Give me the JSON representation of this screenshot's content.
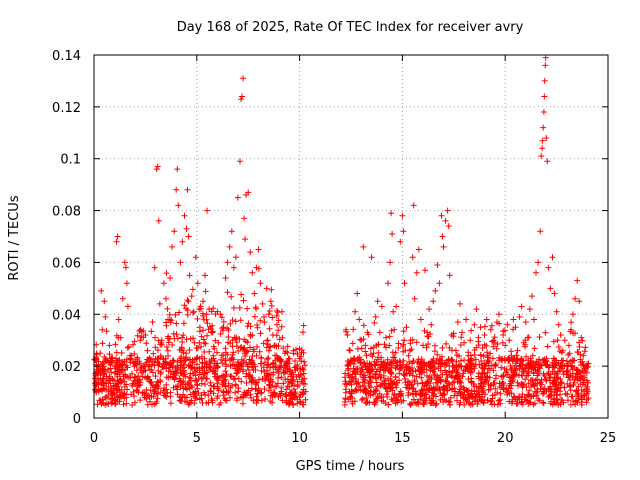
{
  "chart_data": {
    "type": "scatter",
    "title": "Day 168 of 2025, Rate Of TEC Index for receiver avry",
    "xlabel": "GPS time / hours",
    "ylabel": "ROTI / TECUs",
    "xlim": [
      0,
      25
    ],
    "ylim": [
      0,
      0.14
    ],
    "xticks": [
      0,
      5,
      10,
      15,
      20,
      25
    ],
    "xtick_labels": [
      "0",
      "5",
      "10",
      "15",
      "20",
      "25"
    ],
    "yticks": [
      0,
      0.02,
      0.04,
      0.06,
      0.08,
      0.1,
      0.12,
      0.14
    ],
    "ytick_labels": [
      "0",
      "0.02",
      "0.04",
      "0.06",
      "0.08",
      "0.1",
      "0.12",
      "0.14"
    ],
    "grid": true,
    "marker": "+",
    "marker_color": "#ff0000",
    "data_gap_hours": [
      10.3,
      12.2
    ],
    "series": [
      {
        "name": "ROTI",
        "points": [
          [
            0.05,
            0.011
          ],
          [
            0.15,
            0.018
          ],
          [
            0.3,
            0.025
          ],
          [
            0.35,
            0.049
          ],
          [
            0.4,
            0.034
          ],
          [
            0.5,
            0.045
          ],
          [
            0.55,
            0.039
          ],
          [
            0.6,
            0.022
          ],
          [
            0.7,
            0.012
          ],
          [
            0.75,
            0.028
          ],
          [
            0.9,
            0.015
          ],
          [
            1.0,
            0.009
          ],
          [
            1.1,
            0.068
          ],
          [
            1.15,
            0.07
          ],
          [
            1.2,
            0.038
          ],
          [
            1.3,
            0.031
          ],
          [
            1.4,
            0.046
          ],
          [
            1.5,
            0.06
          ],
          [
            1.55,
            0.058
          ],
          [
            1.6,
            0.052
          ],
          [
            1.65,
            0.043
          ],
          [
            1.75,
            0.024
          ],
          [
            1.85,
            0.017
          ],
          [
            2.0,
            0.013
          ],
          [
            2.1,
            0.021
          ],
          [
            2.25,
            0.03
          ],
          [
            2.4,
            0.018
          ],
          [
            2.5,
            0.032
          ],
          [
            2.6,
            0.026
          ],
          [
            2.75,
            0.014
          ],
          [
            2.85,
            0.037
          ],
          [
            2.95,
            0.058
          ],
          [
            3.05,
            0.096
          ],
          [
            3.1,
            0.097
          ],
          [
            3.15,
            0.076
          ],
          [
            3.2,
            0.044
          ],
          [
            3.3,
            0.03
          ],
          [
            3.4,
            0.052
          ],
          [
            3.5,
            0.046
          ],
          [
            3.6,
            0.038
          ],
          [
            3.7,
            0.054
          ],
          [
            3.8,
            0.066
          ],
          [
            3.9,
            0.072
          ],
          [
            4.0,
            0.088
          ],
          [
            4.05,
            0.096
          ],
          [
            4.1,
            0.082
          ],
          [
            4.2,
            0.06
          ],
          [
            4.3,
            0.068
          ],
          [
            4.4,
            0.078
          ],
          [
            4.5,
            0.073
          ],
          [
            4.55,
            0.088
          ],
          [
            4.6,
            0.07
          ],
          [
            4.65,
            0.055
          ],
          [
            4.75,
            0.047
          ],
          [
            4.85,
            0.041
          ],
          [
            4.95,
            0.062
          ],
          [
            5.05,
            0.052
          ],
          [
            5.15,
            0.035
          ],
          [
            5.3,
            0.045
          ],
          [
            5.4,
            0.055
          ],
          [
            5.5,
            0.08
          ],
          [
            5.6,
            0.042
          ],
          [
            5.7,
            0.033
          ],
          [
            5.8,
            0.024
          ],
          [
            5.9,
            0.018
          ],
          [
            6.05,
            0.029
          ],
          [
            6.15,
            0.04
          ],
          [
            6.3,
            0.035
          ],
          [
            6.4,
            0.054
          ],
          [
            6.5,
            0.06
          ],
          [
            6.6,
            0.066
          ],
          [
            6.7,
            0.072
          ],
          [
            6.8,
            0.058
          ],
          [
            6.9,
            0.062
          ],
          [
            7.0,
            0.085
          ],
          [
            7.1,
            0.099
          ],
          [
            7.15,
            0.123
          ],
          [
            7.2,
            0.124
          ],
          [
            7.25,
            0.131
          ],
          [
            7.3,
            0.077
          ],
          [
            7.35,
            0.069
          ],
          [
            7.4,
            0.086
          ],
          [
            7.5,
            0.087
          ],
          [
            7.6,
            0.064
          ],
          [
            7.7,
            0.056
          ],
          [
            7.8,
            0.048
          ],
          [
            7.9,
            0.058
          ],
          [
            8.0,
            0.065
          ],
          [
            8.1,
            0.052
          ],
          [
            8.2,
            0.044
          ],
          [
            8.3,
            0.037
          ],
          [
            8.4,
            0.05
          ],
          [
            8.5,
            0.04
          ],
          [
            8.6,
            0.045
          ],
          [
            8.7,
            0.032
          ],
          [
            8.8,
            0.028
          ],
          [
            8.9,
            0.036
          ],
          [
            9.0,
            0.023
          ],
          [
            9.1,
            0.02
          ],
          [
            9.2,
            0.027
          ],
          [
            9.3,
            0.015
          ],
          [
            9.4,
            0.022
          ],
          [
            9.5,
            0.012
          ],
          [
            9.6,
            0.017
          ],
          [
            9.7,
            0.026
          ],
          [
            9.8,
            0.01
          ],
          [
            9.9,
            0.019
          ],
          [
            10.0,
            0.008
          ],
          [
            10.1,
            0.014
          ],
          [
            10.2,
            0.011
          ],
          [
            12.25,
            0.034
          ],
          [
            12.35,
            0.022
          ],
          [
            12.45,
            0.026
          ],
          [
            12.6,
            0.015
          ],
          [
            12.7,
            0.041
          ],
          [
            12.8,
            0.048
          ],
          [
            12.9,
            0.038
          ],
          [
            13.0,
            0.03
          ],
          [
            13.1,
            0.066
          ],
          [
            13.2,
            0.028
          ],
          [
            13.3,
            0.033
          ],
          [
            13.4,
            0.021
          ],
          [
            13.5,
            0.062
          ],
          [
            13.6,
            0.025
          ],
          [
            13.7,
            0.039
          ],
          [
            13.8,
            0.045
          ],
          [
            13.9,
            0.033
          ],
          [
            14.0,
            0.043
          ],
          [
            14.1,
            0.02
          ],
          [
            14.2,
            0.031
          ],
          [
            14.3,
            0.052
          ],
          [
            14.4,
            0.06
          ],
          [
            14.45,
            0.079
          ],
          [
            14.5,
            0.071
          ],
          [
            14.55,
            0.041
          ],
          [
            14.6,
            0.034
          ],
          [
            14.7,
            0.043
          ],
          [
            14.8,
            0.027
          ],
          [
            14.9,
            0.068
          ],
          [
            15.0,
            0.078
          ],
          [
            15.05,
            0.072
          ],
          [
            15.1,
            0.052
          ],
          [
            15.2,
            0.035
          ],
          [
            15.3,
            0.024
          ],
          [
            15.4,
            0.03
          ],
          [
            15.5,
            0.062
          ],
          [
            15.55,
            0.082
          ],
          [
            15.6,
            0.046
          ],
          [
            15.7,
            0.056
          ],
          [
            15.8,
            0.065
          ],
          [
            15.9,
            0.038
          ],
          [
            16.0,
            0.028
          ],
          [
            16.1,
            0.057
          ],
          [
            16.2,
            0.033
          ],
          [
            16.3,
            0.042
          ],
          [
            16.4,
            0.036
          ],
          [
            16.5,
            0.045
          ],
          [
            16.6,
            0.049
          ],
          [
            16.7,
            0.059
          ],
          [
            16.8,
            0.052
          ],
          [
            16.9,
            0.078
          ],
          [
            16.95,
            0.07
          ],
          [
            17.0,
            0.066
          ],
          [
            17.1,
            0.076
          ],
          [
            17.2,
            0.08
          ],
          [
            17.25,
            0.074
          ],
          [
            17.3,
            0.055
          ],
          [
            17.4,
            0.032
          ],
          [
            17.5,
            0.02
          ],
          [
            17.6,
            0.026
          ],
          [
            17.7,
            0.037
          ],
          [
            17.8,
            0.044
          ],
          [
            17.9,
            0.033
          ],
          [
            18.0,
            0.029
          ],
          [
            18.1,
            0.038
          ],
          [
            18.2,
            0.024
          ],
          [
            18.3,
            0.03
          ],
          [
            18.5,
            0.036
          ],
          [
            18.6,
            0.042
          ],
          [
            18.7,
            0.031
          ],
          [
            18.8,
            0.035
          ],
          [
            18.9,
            0.027
          ],
          [
            19.0,
            0.032
          ],
          [
            19.1,
            0.038
          ],
          [
            19.3,
            0.034
          ],
          [
            19.4,
            0.023
          ],
          [
            19.5,
            0.029
          ],
          [
            19.6,
            0.037
          ],
          [
            19.7,
            0.04
          ],
          [
            19.9,
            0.032
          ],
          [
            20.0,
            0.028
          ],
          [
            20.1,
            0.036
          ],
          [
            20.2,
            0.03
          ],
          [
            20.3,
            0.024
          ],
          [
            20.4,
            0.038
          ],
          [
            20.5,
            0.035
          ],
          [
            20.6,
            0.026
          ],
          [
            20.7,
            0.039
          ],
          [
            20.8,
            0.043
          ],
          [
            20.9,
            0.029
          ],
          [
            21.0,
            0.037
          ],
          [
            21.1,
            0.031
          ],
          [
            21.2,
            0.042
          ],
          [
            21.3,
            0.047
          ],
          [
            21.4,
            0.038
          ],
          [
            21.5,
            0.056
          ],
          [
            21.6,
            0.06
          ],
          [
            21.7,
            0.072
          ],
          [
            21.75,
            0.101
          ],
          [
            21.8,
            0.104
          ],
          [
            21.82,
            0.107
          ],
          [
            21.85,
            0.112
          ],
          [
            21.88,
            0.118
          ],
          [
            21.9,
            0.124
          ],
          [
            21.92,
            0.13
          ],
          [
            21.95,
            0.136
          ],
          [
            21.97,
            0.139
          ],
          [
            22.0,
            0.108
          ],
          [
            22.05,
            0.099
          ],
          [
            22.1,
            0.058
          ],
          [
            22.2,
            0.05
          ],
          [
            22.3,
            0.062
          ],
          [
            22.4,
            0.048
          ],
          [
            22.5,
            0.041
          ],
          [
            22.6,
            0.036
          ],
          [
            22.7,
            0.032
          ],
          [
            22.8,
            0.026
          ],
          [
            22.9,
            0.03
          ],
          [
            23.0,
            0.022
          ],
          [
            23.1,
            0.028
          ],
          [
            23.2,
            0.034
          ],
          [
            23.3,
            0.04
          ],
          [
            23.4,
            0.046
          ],
          [
            23.5,
            0.053
          ],
          [
            23.6,
            0.045
          ],
          [
            23.7,
            0.031
          ],
          [
            23.8,
            0.024
          ],
          [
            23.9,
            0.018
          ],
          [
            24.0,
            0.012
          ]
        ]
      }
    ]
  }
}
